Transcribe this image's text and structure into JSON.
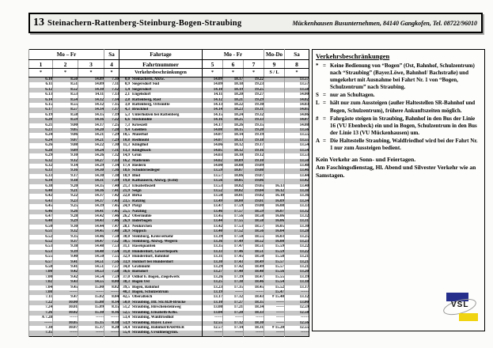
{
  "title_bar": {
    "route_number": "13",
    "route_name": "Steinachern-Rattenberg-Steinburg-Bogen-Straubing",
    "operator": "Mückenhausen Busunternehmen, 84140 Gangkofen, Tel. 08722/96010"
  },
  "table": {
    "header": {
      "left_days": "Mo – Fr",
      "left_sa": "Sa",
      "fahrtage": "Fahrtage",
      "fahrtnummer": "Fahrtnummer",
      "verkehrsbeschraenkungen": "Verkehrsbeschränkungen",
      "right_days": "Mo - Fr",
      "right_mo_do": "Mo-Do",
      "right_sa": "Sa",
      "trip_numbers_left": [
        "1",
        "2",
        "3",
        "4"
      ],
      "trip_numbers_right": [
        "5",
        "6",
        "7",
        "9",
        "8"
      ],
      "restrictions_left": [
        "*",
        "*",
        "*",
        "*"
      ],
      "restrictions_right": [
        "*",
        "*",
        "*",
        "S / L",
        "*"
      ]
    },
    "rows": [
      [
        "6.10",
        "8.50",
        "14.09",
        "7.10",
        "0,0",
        "Steinachern, Abzw.",
        "14.09",
        "18.17",
        "19.22",
        "",
        "13.57"
      ],
      [
        "6.11",
        "8.51",
        "14.09",
        "7.11",
        "0,9",
        "Siegersdorf Süd",
        "14.09",
        "18.18",
        "19.23",
        "",
        "13.57"
      ],
      [
        "6.12",
        "8.52",
        "14.10",
        "7.12",
        "1,4",
        "Siegersdorf",
        "14.10",
        "18.19",
        "19.25",
        "",
        "13.58"
      ],
      [
        "6.13",
        "8.53",
        "14.11",
        "7.13",
        "2,1",
        "Engelsdorf",
        "14.11",
        "18.20",
        "19.27",
        "",
        "14.00"
      ],
      [
        "6.14",
        "8.54",
        "14.12",
        "7.14",
        "2,8",
        "Rattenberg, Rast",
        "14.12",
        "18.21",
        "19.29",
        "",
        "14.02"
      ],
      [
        "6.15",
        "8.55",
        "14.12",
        "7.15",
        "3,0",
        "Rattenberg, Ortsmitte",
        "14.13",
        "18.22",
        "19.30",
        "",
        "14.03"
      ],
      [
        "6.17",
        "8.57",
        "14.14",
        "7.17",
        "4,3",
        "Bruckhof",
        "14.14",
        "18.23",
        "19.31",
        "",
        "14.05"
      ],
      [
        "6.19",
        "8.58",
        "14.15",
        "7.19",
        "5,3",
        "Unterholzen bei Rattenberg",
        "14.15",
        "18.24",
        "19.32",
        "",
        "14.06"
      ],
      [
        "6.20",
        "8.59",
        "14.16",
        "7.22",
        "6,6",
        "Steckmühle",
        "14.16",
        "18.25",
        "19.33",
        "",
        "14.07"
      ],
      [
        "6.21",
        "9.00",
        "14.17",
        "7.25",
        "7,3",
        "Krieszell",
        "14.17",
        "18.26",
        "19.35",
        "",
        "14.08"
      ],
      [
        "6.23",
        "9.05",
        "14.20",
        "7.28",
        "9,4",
        "Gneißen",
        "14.08",
        "18.15",
        "19.20",
        "",
        "13.56"
      ],
      [
        "6.24",
        "9.06",
        "14.21",
        "7.29",
        "10,5",
        "Maierhof",
        "14.07",
        "18.14",
        "19.19",
        "",
        "13.55"
      ],
      [
        "6.24",
        "9.07",
        "14.21",
        "7.29",
        "10,8",
        "Redlmühl",
        "14.07",
        "18.13",
        "19.18",
        "",
        "13.55"
      ],
      [
        "6.26",
        "9.08",
        "14.22",
        "7.30",
        "11,3",
        "Klinglhof",
        "14.06",
        "18.12",
        "19.17",
        "",
        "13.54"
      ],
      [
        "6.28",
        "9.09",
        "14.24",
        "7.31",
        "13,3",
        "Klinglbach",
        "14.05",
        "18.12",
        "19.16",
        "",
        "13.54"
      ],
      [
        "6.29",
        "9.10",
        "14.26",
        "7.32",
        "14,9",
        "Grün",
        "14.03",
        "18.10",
        "19.12",
        "",
        "13.53"
      ],
      [
        "6.32",
        "9.12",
        "14.27",
        "7.33",
        "16,2",
        "Maibrunn",
        "14.02",
        "18.09",
        "19.10",
        "",
        "13.50"
      ],
      [
        "6.32",
        "9.14",
        "14.29",
        "7.34",
        "17,4",
        "Riedern",
        "14.00",
        "18.08",
        "19.09",
        "",
        "13.48"
      ],
      [
        "6.33",
        "9.16",
        "14.30",
        "7.36",
        "18,6",
        "Schuhbriedleger",
        "13.59",
        "18.07",
        "19.08",
        "",
        "13.46"
      ],
      [
        "6.33",
        "9.17",
        "14.30",
        "7.38",
        "18,9",
        "Blöd",
        "13.57",
        "18.06",
        "19.07",
        "",
        "13.44"
      ],
      [
        "6.34",
        "9.18",
        "14.31",
        "7.39",
        "19,8",
        "Kafhäusern, Abzwg. (Echl)",
        "13.56",
        "18.05",
        "19.06",
        "",
        "13.42"
      ],
      [
        "6.38",
        "9.20",
        "14.35",
        "7.40",
        "21,3",
        "Elisabethszell",
        "13.53",
        "18.02",
        "19.05",
        "16.13",
        "13.40"
      ],
      [
        "6.40",
        "9.21",
        "14.36",
        "7.41",
        "21,9",
        "Seign",
        "13.52",
        "18.02",
        "19.04",
        "16.12",
        "13.38"
      ],
      [
        "6.42",
        "9.22",
        "14.37",
        "7.42",
        "22,8",
        "Birka",
        "13.50",
        "18.01",
        "19.02",
        "16.10",
        "13.36"
      ],
      [
        "6.43",
        "9.23",
        "14.37",
        "7.43",
        "23,5",
        "Ratzing",
        "13.49",
        "18.00",
        "19.01",
        "16.09",
        "13.34"
      ],
      [
        "6.45",
        "9.25",
        "14.39",
        "7.45",
        "24,9",
        "Pürgl",
        "13.47",
        "17.59",
        "19.00",
        "16.08",
        "13.33"
      ],
      [
        "6.46",
        "9.26",
        "14.41",
        "7.45",
        "25,5",
        "Natzling",
        "13.46",
        "17.57",
        "18.59",
        "16.07",
        "13.32"
      ],
      [
        "6.47",
        "9.28",
        "14.42",
        "7.46",
        "26,2",
        "Obermühle",
        "13.45",
        "17.56",
        "18.58",
        "16.06",
        "13.32"
      ],
      [
        "6.48",
        "9.29",
        "14.43",
        "7.46",
        "26,9",
        "Inderbogen",
        "13.44",
        "17.55",
        "18.58",
        "16.06",
        "13.31"
      ],
      [
        "6.50",
        "9.30",
        "14.44",
        "7.47",
        "28,1",
        "Neukirchen",
        "13.42",
        "17.53",
        "18.57",
        "16.05",
        "13.30"
      ],
      [
        "6.51",
        "9.32",
        "14.45",
        "7.48",
        "28,9",
        "Stippich",
        "13.40",
        "17.52",
        "18.56",
        "16.04",
        "13.28"
      ],
      [
        "6.52",
        "9.35",
        "14.46",
        "7.50",
        "30,0",
        "Steinburg, Kreisverkehr",
        "13.39",
        "17.50",
        "18.55",
        "16.03",
        "13.25"
      ],
      [
        "6.52",
        "9.37",
        "14.47",
        "7.52",
        "30,5",
        "Steinburg, Abzwg. Wegern",
        "13.36",
        "17.49",
        "18.52",
        "16.00",
        "13.23"
      ],
      [
        "6.53",
        "9.38",
        "14.48",
        "7.53",
        "31,1",
        "Haselquanten",
        "13.35",
        "17.47",
        "18.51",
        "15.59",
        "13.22"
      ],
      [
        "6.53",
        "9.39",
        "14.48",
        "7.54",
        "31,8",
        "Hunderdorf, Gewerbepark",
        "13.33",
        "17.46",
        "18.51",
        "15.59",
        "13.22"
      ],
      [
        "6.55",
        "9.40",
        "14.50",
        "7.55",
        "32,9",
        "Hunderdorf, Bahnhof",
        "13.31",
        "17.45",
        "18.50",
        "15.58",
        "13.21"
      ],
      [
        "6.57",
        "9.41",
        "14.51",
        "7.56",
        "33,9",
        "Hofdorf bei Hunderdorf",
        "13.30",
        "17.43",
        "18.49",
        "15.57",
        "13.21"
      ],
      [
        "6.58",
        "9.41",
        "14.51",
        "7.57",
        "34,8",
        "Grabmühl",
        "13.29",
        "17.42",
        "18.49",
        "15.57",
        "13.21"
      ],
      [
        "7.00",
        "9.42",
        "14.53",
        "7.58",
        "36,6",
        "Bärndorf",
        "13.27",
        "17.40",
        "18.48",
        "15.56",
        "13.20"
      ],
      [
        "7.00",
        "9.42",
        "14.54",
        "7.59",
        "37,0",
        "Ödhof b. Bogen, Ziegelwerk",
        "13.26",
        "17.39",
        "18.47",
        "15.55",
        "13.19"
      ],
      [
        "7.02",
        "9.43",
        "14.55",
        "8.00",
        "38,3",
        "Bogen Ost",
        "13.25",
        "17.38",
        "18.46",
        "15.54",
        "13.18"
      ],
      [
        "7.04",
        "9.45",
        "15.00",
        "8.02",
        "39,5",
        "Bogen, Bahnhof",
        "13.23",
        "17.35",
        "18.45",
        "15.52",
        "13.17"
      ],
      [
        "7.08",
        "------",
        "------",
        "------",
        "40,3",
        "Bogen, Schulzentrum",
        "13.19",
        "------",
        "------",
        "15.47",
        "------"
      ],
      [
        "7.11",
        "9.47",
        "15.02",
        "8.04",
        "42,5",
        "Oberalteich",
        "13.17",
        "17.32",
        "18.43",
        "# 15.40",
        "13.12"
      ],
      [
        "7.22",
        "10.00",
        "15.08",
        "8.14",
        "50,0",
        "Straubing, Ittl. Str./B20-Brücke",
        "13.10",
        "17.27",
        "18.35",
        "------",
        "13.00"
      ],
      [
        "7.24",
        "10.01",
        "15.09",
        "8.15",
        "51,2",
        "Straubing, Hirschensteinweg",
        "13.08",
        "17.21",
        "18.34",
        "------",
        "12.59"
      ],
      [
        "7.26",
        "10.02",
        "15.10",
        "8.16",
        "52,5",
        "Straubing, Elisabeth-Krhs.",
        "13.04",
        "17.20",
        "18.33",
        "------",
        "12.58"
      ],
      [
        "A 7.28",
        "------",
        "------",
        "------",
        "53,4",
        "Straubing, Waldfriedhof",
        "------",
        "------",
        "------",
        "------",
        "------"
      ],
      [
        "------",
        "10.05",
        "15.15",
        "8.18",
        "53,9",
        "Straubing, Bayer. Löwe",
        "12.55",
        "17.12",
        "18.30",
        "------",
        "12.56"
      ],
      [
        "7.30",
        "10.07",
        "15.17",
        "8.20",
        "54,4",
        "Straubing, Bahnhof/BARMER",
        "12.57",
        "17.14",
        "18.31",
        "# 15.20",
        "12.55"
      ],
      [
        "7.35",
        "------",
        "------",
        "------",
        "55,4",
        "Straubing, Ursulinengymn.",
        "------",
        "------",
        "------",
        "------",
        "------"
      ]
    ]
  },
  "legend": {
    "title": "Verkehrsbeschränkungen",
    "equals_sign": "=",
    "items": [
      {
        "symbol": "*",
        "text": "Keine Bedienung von “Bogen” (Ost, Bahnhof, Schulzentrum) nach “Straubing” (Bayer.Löwe, Bahnhof/ Bachstraße) und umgekehrt mit Ausnahme bei Fahrt Nr. 1 von “Bogen, Schulzentrum” nach Straubing."
      },
      {
        "symbol": "S",
        "text": "nur an Schultagen."
      },
      {
        "symbol": "L",
        "text": "hält nur zum Aussteigen (außer Haltestellen SR-Bahnhof und Bogen, Schulzentrum), frühere Ankunftszeiten möglich."
      },
      {
        "symbol": "#",
        "text": "Fahrgäste steigen in Straubing, Bahnhof in den Bus der Linie 16 (VU Ebenbeck) ein und in Bogen, Schulzentrum in den Bus der Linie 13 (VU Mückenhausen) um."
      },
      {
        "symbol": "A",
        "text": "Die Haltestelle Straubing, Waldfriedhof wird bei der Fahrt Nr. 1 nur zum Aussteigen bedient."
      }
    ],
    "notes": [
      "Kein Verkehr an Sonn- und Feiertagen.",
      "Am Faschingsdienstag, Hl. Abend und Silvester Verkehr wie an Samstagen."
    ],
    "logo_text": "VSL"
  },
  "colors": {
    "row_stripe": "#c6c6c6",
    "logo_blue": "#26308c",
    "logo_yellow": "#f0d411"
  }
}
